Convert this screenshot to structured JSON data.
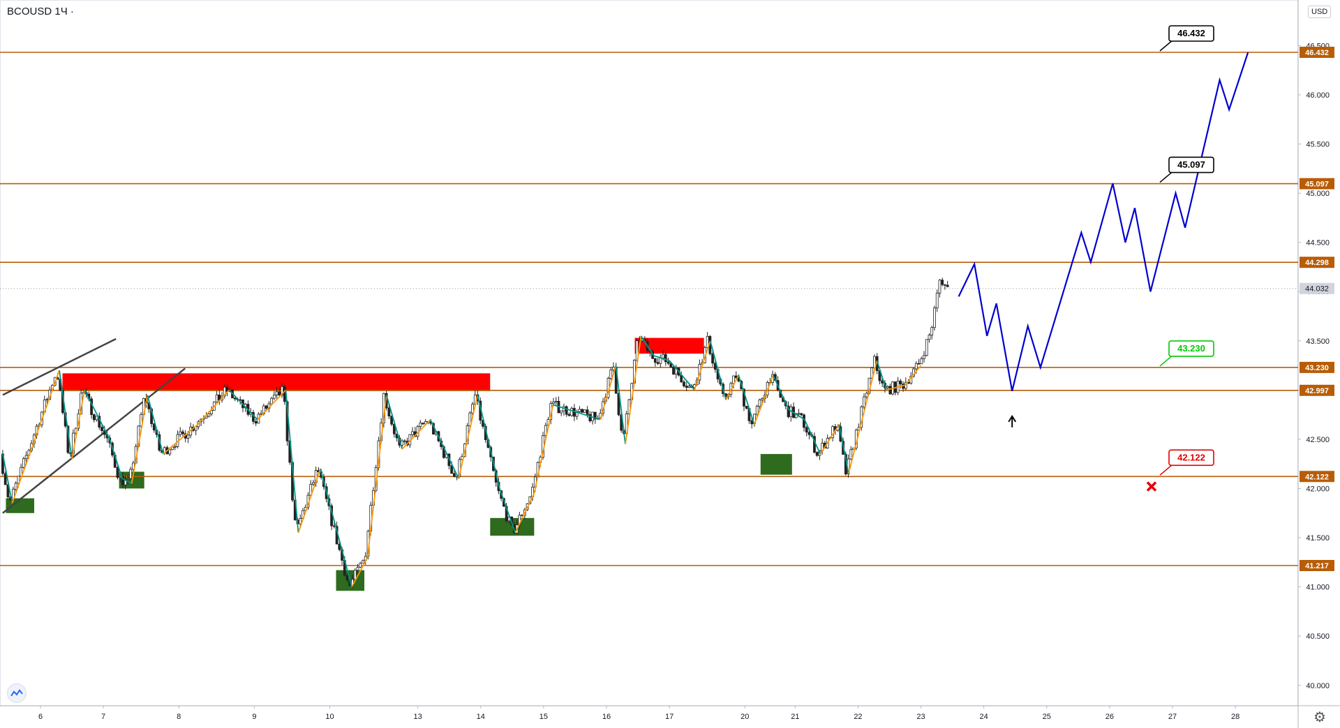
{
  "header": {
    "symbol": "BCOUSD",
    "timeframe": "1Ч",
    "currency_button": "USD"
  },
  "colors": {
    "level": "#b85c06",
    "current": "#b2b5be",
    "supply": "#ff0000",
    "demand": "#2e6b1e",
    "forecast": "#0000d0",
    "wave_up": "#ff9800",
    "wave_down": "#009688",
    "target": "#00c800",
    "stop": "#e00000"
  },
  "chart_data": {
    "type": "candlestick",
    "symbol": "BCOUSD",
    "interval": "1H",
    "ylim": [
      39.9,
      47.0
    ],
    "y_ticks": [
      40.0,
      40.5,
      41.0,
      41.5,
      42.0,
      42.5,
      43.0,
      43.5,
      44.0,
      44.5,
      45.0,
      45.5,
      46.0,
      46.5
    ],
    "y_tick_labels": [
      "40.000",
      "40.500",
      "41.000",
      "41.500",
      "42.000",
      "42.500",
      "43.000",
      "43.500",
      "44.000",
      "44.500",
      "45.000",
      "45.500",
      "46.000",
      "46.500"
    ],
    "x_range": [
      5.4,
      29.7
    ],
    "x_ticks": [
      {
        "t": 6.0,
        "label": "6"
      },
      {
        "t": 7.0,
        "label": "7"
      },
      {
        "t": 8.2,
        "label": "8"
      },
      {
        "t": 9.4,
        "label": "9"
      },
      {
        "t": 10.6,
        "label": "10"
      },
      {
        "t": 12.0,
        "label": "13"
      },
      {
        "t": 13.0,
        "label": "14"
      },
      {
        "t": 14.0,
        "label": "15"
      },
      {
        "t": 15.0,
        "label": "16"
      },
      {
        "t": 16.0,
        "label": "17"
      },
      {
        "t": 17.2,
        "label": "20"
      },
      {
        "t": 18.0,
        "label": "21"
      },
      {
        "t": 19.0,
        "label": "22"
      },
      {
        "t": 20.0,
        "label": "23"
      },
      {
        "t": 21.0,
        "label": "24"
      },
      {
        "t": 22.0,
        "label": "25"
      },
      {
        "t": 23.0,
        "label": "26"
      },
      {
        "t": 24.0,
        "label": "27"
      },
      {
        "t": 25.0,
        "label": "28"
      }
    ],
    "levels": [
      {
        "value": 46.432,
        "label": "46.432"
      },
      {
        "value": 45.097,
        "label": "45.097"
      },
      {
        "value": 44.298,
        "label": "44.298"
      },
      {
        "value": 43.23,
        "label": "43.230"
      },
      {
        "value": 42.997,
        "label": "42.997"
      },
      {
        "value": 42.122,
        "label": "42.122"
      },
      {
        "value": 41.217,
        "label": "41.217"
      }
    ],
    "current_price": {
      "value": 44.032,
      "label": "44.032"
    },
    "zones": [
      {
        "kind": "supply",
        "t0": 6.35,
        "t1": 13.15,
        "low": 42.99,
        "high": 43.17
      },
      {
        "kind": "supply",
        "t0": 15.45,
        "t1": 16.55,
        "low": 43.37,
        "high": 43.53
      },
      {
        "kind": "demand",
        "t0": 5.45,
        "t1": 5.9,
        "low": 41.75,
        "high": 41.9
      },
      {
        "kind": "demand",
        "t0": 7.25,
        "t1": 7.65,
        "low": 42.0,
        "high": 42.17
      },
      {
        "kind": "demand",
        "t0": 10.7,
        "t1": 11.15,
        "low": 40.96,
        "high": 41.17
      },
      {
        "kind": "demand",
        "t0": 13.15,
        "t1": 13.85,
        "low": 41.52,
        "high": 41.7
      },
      {
        "kind": "demand",
        "t0": 17.45,
        "t1": 17.95,
        "low": 42.14,
        "high": 42.35
      }
    ],
    "trendlines": [
      {
        "t0": 5.4,
        "v0": 42.95,
        "t1": 7.2,
        "v1": 43.52
      },
      {
        "t0": 5.4,
        "v0": 41.75,
        "t1": 8.3,
        "v1": 43.22
      }
    ],
    "wave": [
      [
        5.4,
        42.35
      ],
      [
        5.55,
        41.85
      ],
      [
        6.3,
        43.2
      ],
      [
        6.5,
        42.3
      ],
      [
        6.7,
        43.0
      ],
      [
        7.1,
        42.5
      ],
      [
        7.3,
        42.1
      ],
      [
        7.45,
        42.05
      ],
      [
        7.7,
        42.95
      ],
      [
        7.95,
        42.35
      ],
      [
        8.5,
        42.65
      ],
      [
        9.0,
        43.0
      ],
      [
        9.45,
        42.7
      ],
      [
        9.9,
        43.0
      ],
      [
        10.1,
        41.55
      ],
      [
        10.45,
        42.2
      ],
      [
        10.95,
        41.0
      ],
      [
        11.2,
        41.3
      ],
      [
        11.5,
        42.95
      ],
      [
        11.75,
        42.4
      ],
      [
        12.2,
        42.7
      ],
      [
        12.65,
        42.1
      ],
      [
        12.95,
        42.95
      ],
      [
        13.3,
        42.0
      ],
      [
        13.55,
        41.55
      ],
      [
        13.85,
        41.95
      ],
      [
        14.15,
        42.85
      ],
      [
        14.9,
        42.7
      ],
      [
        15.15,
        43.25
      ],
      [
        15.3,
        42.45
      ],
      [
        15.55,
        43.55
      ],
      [
        15.75,
        43.35
      ],
      [
        16.0,
        43.3
      ],
      [
        16.4,
        43.0
      ],
      [
        16.65,
        43.5
      ],
      [
        16.9,
        42.9
      ],
      [
        17.1,
        43.15
      ],
      [
        17.35,
        42.65
      ],
      [
        17.65,
        43.15
      ],
      [
        17.9,
        42.8
      ],
      [
        18.15,
        42.7
      ],
      [
        18.4,
        42.35
      ],
      [
        18.7,
        42.65
      ],
      [
        18.85,
        42.15
      ],
      [
        19.3,
        43.3
      ],
      [
        19.45,
        43.0
      ],
      [
        19.75,
        43.05
      ],
      [
        20.0,
        43.25
      ]
    ],
    "candles": {
      "t_start": 5.4,
      "t_end": 20.45,
      "close_anchor": [
        [
          5.4,
          42.35
        ],
        [
          5.55,
          41.85
        ],
        [
          6.3,
          43.2
        ],
        [
          6.5,
          42.3
        ],
        [
          6.7,
          43.0
        ],
        [
          7.1,
          42.5
        ],
        [
          7.3,
          42.1
        ],
        [
          7.45,
          42.05
        ],
        [
          7.7,
          42.95
        ],
        [
          7.95,
          42.35
        ],
        [
          8.5,
          42.65
        ],
        [
          9.0,
          43.0
        ],
        [
          9.45,
          42.7
        ],
        [
          9.9,
          43.0
        ],
        [
          10.1,
          41.55
        ],
        [
          10.45,
          42.2
        ],
        [
          10.95,
          41.0
        ],
        [
          11.2,
          41.3
        ],
        [
          11.5,
          42.95
        ],
        [
          11.75,
          42.4
        ],
        [
          12.2,
          42.7
        ],
        [
          12.65,
          42.1
        ],
        [
          12.95,
          42.95
        ],
        [
          13.3,
          42.0
        ],
        [
          13.55,
          41.55
        ],
        [
          13.85,
          41.95
        ],
        [
          14.15,
          42.85
        ],
        [
          14.9,
          42.7
        ],
        [
          15.15,
          43.25
        ],
        [
          15.3,
          42.45
        ],
        [
          15.55,
          43.55
        ],
        [
          15.75,
          43.35
        ],
        [
          16.0,
          43.3
        ],
        [
          16.4,
          43.0
        ],
        [
          16.65,
          43.5
        ],
        [
          16.9,
          42.9
        ],
        [
          17.1,
          43.15
        ],
        [
          17.35,
          42.65
        ],
        [
          17.65,
          43.15
        ],
        [
          17.9,
          42.8
        ],
        [
          18.15,
          42.7
        ],
        [
          18.4,
          42.35
        ],
        [
          18.7,
          42.65
        ],
        [
          18.85,
          42.15
        ],
        [
          19.3,
          43.3
        ],
        [
          19.45,
          43.0
        ],
        [
          19.75,
          43.05
        ],
        [
          20.0,
          43.25
        ],
        [
          20.2,
          43.6
        ],
        [
          20.35,
          44.15
        ],
        [
          20.45,
          44.03
        ]
      ]
    },
    "forecast_path": [
      [
        20.6,
        43.95
      ],
      [
        20.85,
        44.28
      ],
      [
        21.05,
        43.55
      ],
      [
        21.2,
        43.88
      ],
      [
        21.45,
        42.99
      ],
      [
        21.7,
        43.65
      ],
      [
        21.9,
        43.23
      ],
      [
        22.55,
        44.6
      ],
      [
        22.7,
        44.3
      ],
      [
        23.05,
        45.1
      ],
      [
        23.25,
        44.5
      ],
      [
        23.4,
        44.85
      ],
      [
        23.65,
        44.0
      ],
      [
        24.05,
        45.0
      ],
      [
        24.2,
        44.65
      ],
      [
        24.75,
        46.15
      ],
      [
        24.9,
        45.85
      ],
      [
        25.2,
        46.43
      ]
    ],
    "signal_arrow": {
      "t": 21.45,
      "v": 42.72
    },
    "target_labels": [
      {
        "value": 46.432,
        "label": "46.432",
        "style": "black"
      },
      {
        "value": 45.097,
        "label": "45.097",
        "style": "black"
      },
      {
        "value": 43.23,
        "label": "43.230",
        "style": "green"
      },
      {
        "value": 42.122,
        "label": "42.122",
        "style": "red"
      }
    ],
    "stop_marker": {
      "t": 25.0,
      "v": 42.02
    }
  }
}
